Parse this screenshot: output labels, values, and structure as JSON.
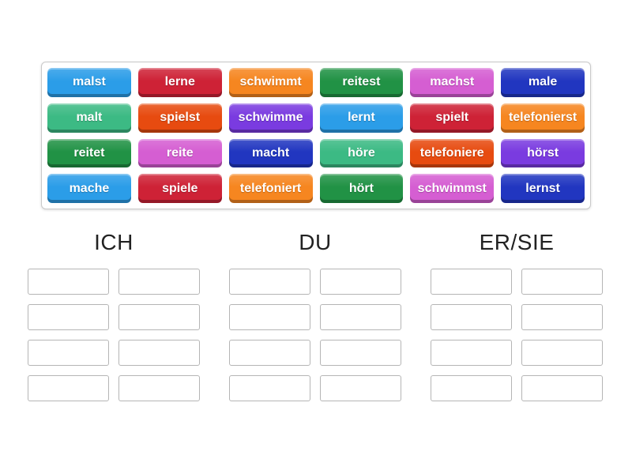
{
  "page": {
    "background": "#ffffff"
  },
  "palette": {
    "lightblue": "#2b9de8",
    "crimson": "#ce2236",
    "orange": "#f68620",
    "darkgreen": "#219245",
    "orchid": "#d55ed2",
    "darkblue": "#2136c0",
    "seagreen": "#3cba84",
    "orangered": "#e74b10",
    "purple": "#7a3be0"
  },
  "tray": {
    "tiles": [
      {
        "label": "malst",
        "color": "lightblue"
      },
      {
        "label": "lerne",
        "color": "crimson"
      },
      {
        "label": "schwimmt",
        "color": "orange"
      },
      {
        "label": "reitest",
        "color": "darkgreen"
      },
      {
        "label": "machst",
        "color": "orchid"
      },
      {
        "label": "male",
        "color": "darkblue"
      },
      {
        "label": "malt",
        "color": "seagreen"
      },
      {
        "label": "spielst",
        "color": "orangered"
      },
      {
        "label": "schwimme",
        "color": "purple"
      },
      {
        "label": "lernt",
        "color": "lightblue"
      },
      {
        "label": "spielt",
        "color": "crimson"
      },
      {
        "label": "telefonierst",
        "color": "orange"
      },
      {
        "label": "reitet",
        "color": "darkgreen"
      },
      {
        "label": "reite",
        "color": "orchid"
      },
      {
        "label": "macht",
        "color": "darkblue"
      },
      {
        "label": "höre",
        "color": "seagreen"
      },
      {
        "label": "telefoniere",
        "color": "orangered"
      },
      {
        "label": "hörst",
        "color": "purple"
      },
      {
        "label": "mache",
        "color": "lightblue"
      },
      {
        "label": "spiele",
        "color": "crimson"
      },
      {
        "label": "telefoniert",
        "color": "orange"
      },
      {
        "label": "hört",
        "color": "darkgreen"
      },
      {
        "label": "schwimmst",
        "color": "orchid"
      },
      {
        "label": "lernst",
        "color": "darkblue"
      }
    ]
  },
  "groups": [
    {
      "label": "ICH",
      "slot_count": 8
    },
    {
      "label": "DU",
      "slot_count": 8
    },
    {
      "label": "ER/SIE",
      "slot_count": 8
    }
  ]
}
